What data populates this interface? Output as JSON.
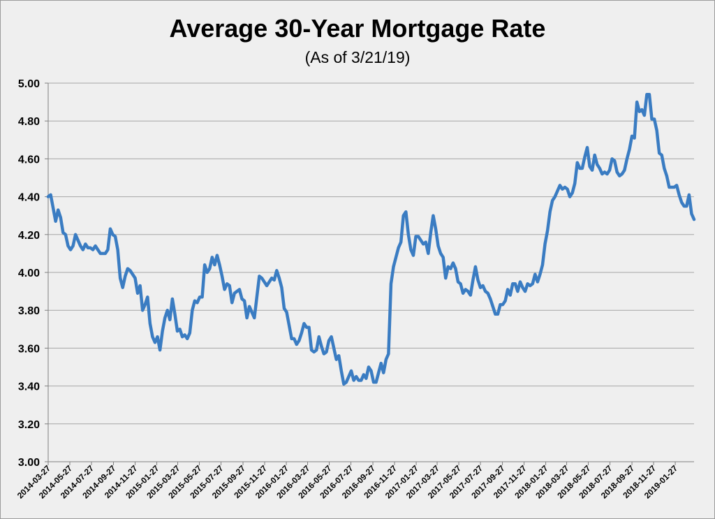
{
  "chart_data": {
    "type": "line",
    "title": "Average 30-Year Mortgage Rate",
    "subtitle": "(As of 3/21/19)",
    "xlabel": "",
    "ylabel": "",
    "ylim": [
      3.0,
      5.0
    ],
    "yticks": [
      "3.00",
      "3.20",
      "3.40",
      "3.60",
      "3.80",
      "4.00",
      "4.20",
      "4.40",
      "4.60",
      "4.80",
      "5.00"
    ],
    "xticks": [
      "2014-03-27",
      "2014-05-27",
      "2014-07-27",
      "2014-09-27",
      "2014-11-27",
      "2015-01-27",
      "2015-03-27",
      "2015-05-27",
      "2015-07-27",
      "2015-09-27",
      "2015-11-27",
      "2016-01-27",
      "2016-03-27",
      "2016-05-27",
      "2016-07-27",
      "2016-09-27",
      "2016-11-27",
      "2017-01-27",
      "2017-03-27",
      "2017-05-27",
      "2017-07-27",
      "2017-09-27",
      "2017-11-27",
      "2018-01-27",
      "2018-03-27",
      "2018-05-27",
      "2018-07-27",
      "2018-09-27",
      "2018-11-27",
      "2019-01-27"
    ],
    "xlim": [
      "2014-03-27",
      "2019-03-21"
    ],
    "grid": "horizontal",
    "legend": "none",
    "line_color": "#3a7cc2",
    "series": [
      {
        "points": [
          [
            "2014-03-27",
            4.4
          ],
          [
            "2014-04-03",
            4.41
          ],
          [
            "2014-04-10",
            4.34
          ],
          [
            "2014-04-17",
            4.27
          ],
          [
            "2014-04-24",
            4.33
          ],
          [
            "2014-05-01",
            4.29
          ],
          [
            "2014-05-08",
            4.21
          ],
          [
            "2014-05-15",
            4.2
          ],
          [
            "2014-05-22",
            4.14
          ],
          [
            "2014-05-29",
            4.12
          ],
          [
            "2014-06-05",
            4.14
          ],
          [
            "2014-06-12",
            4.2
          ],
          [
            "2014-06-19",
            4.17
          ],
          [
            "2014-06-26",
            4.14
          ],
          [
            "2014-07-03",
            4.12
          ],
          [
            "2014-07-10",
            4.15
          ],
          [
            "2014-07-17",
            4.13
          ],
          [
            "2014-07-24",
            4.13
          ],
          [
            "2014-07-31",
            4.12
          ],
          [
            "2014-08-07",
            4.14
          ],
          [
            "2014-08-14",
            4.12
          ],
          [
            "2014-08-21",
            4.1
          ],
          [
            "2014-08-28",
            4.1
          ],
          [
            "2014-09-04",
            4.1
          ],
          [
            "2014-09-11",
            4.12
          ],
          [
            "2014-09-18",
            4.23
          ],
          [
            "2014-09-25",
            4.2
          ],
          [
            "2014-10-02",
            4.19
          ],
          [
            "2014-10-09",
            4.12
          ],
          [
            "2014-10-16",
            3.97
          ],
          [
            "2014-10-23",
            3.92
          ],
          [
            "2014-10-30",
            3.98
          ],
          [
            "2014-11-06",
            4.02
          ],
          [
            "2014-11-13",
            4.01
          ],
          [
            "2014-11-20",
            3.99
          ],
          [
            "2014-11-27",
            3.97
          ],
          [
            "2014-12-04",
            3.89
          ],
          [
            "2014-12-11",
            3.93
          ],
          [
            "2014-12-18",
            3.8
          ],
          [
            "2014-12-25",
            3.83
          ],
          [
            "2015-01-01",
            3.87
          ],
          [
            "2015-01-08",
            3.73
          ],
          [
            "2015-01-15",
            3.66
          ],
          [
            "2015-01-22",
            3.63
          ],
          [
            "2015-01-29",
            3.66
          ],
          [
            "2015-02-05",
            3.59
          ],
          [
            "2015-02-12",
            3.69
          ],
          [
            "2015-02-19",
            3.76
          ],
          [
            "2015-02-26",
            3.8
          ],
          [
            "2015-03-05",
            3.75
          ],
          [
            "2015-03-12",
            3.86
          ],
          [
            "2015-03-19",
            3.78
          ],
          [
            "2015-03-26",
            3.69
          ],
          [
            "2015-04-02",
            3.7
          ],
          [
            "2015-04-09",
            3.66
          ],
          [
            "2015-04-16",
            3.67
          ],
          [
            "2015-04-23",
            3.65
          ],
          [
            "2015-04-30",
            3.68
          ],
          [
            "2015-05-07",
            3.8
          ],
          [
            "2015-05-14",
            3.85
          ],
          [
            "2015-05-21",
            3.84
          ],
          [
            "2015-05-28",
            3.87
          ],
          [
            "2015-06-04",
            3.87
          ],
          [
            "2015-06-11",
            4.04
          ],
          [
            "2015-06-18",
            4.0
          ],
          [
            "2015-06-25",
            4.02
          ],
          [
            "2015-07-02",
            4.08
          ],
          [
            "2015-07-09",
            4.04
          ],
          [
            "2015-07-16",
            4.09
          ],
          [
            "2015-07-23",
            4.04
          ],
          [
            "2015-07-30",
            3.98
          ],
          [
            "2015-08-06",
            3.91
          ],
          [
            "2015-08-13",
            3.94
          ],
          [
            "2015-08-20",
            3.93
          ],
          [
            "2015-08-27",
            3.84
          ],
          [
            "2015-09-03",
            3.89
          ],
          [
            "2015-09-10",
            3.9
          ],
          [
            "2015-09-17",
            3.91
          ],
          [
            "2015-09-24",
            3.86
          ],
          [
            "2015-10-01",
            3.85
          ],
          [
            "2015-10-08",
            3.76
          ],
          [
            "2015-10-15",
            3.82
          ],
          [
            "2015-10-22",
            3.79
          ],
          [
            "2015-10-29",
            3.76
          ],
          [
            "2015-11-05",
            3.87
          ],
          [
            "2015-11-12",
            3.98
          ],
          [
            "2015-11-19",
            3.97
          ],
          [
            "2015-11-26",
            3.95
          ],
          [
            "2015-12-03",
            3.93
          ],
          [
            "2015-12-10",
            3.95
          ],
          [
            "2015-12-17",
            3.97
          ],
          [
            "2015-12-24",
            3.96
          ],
          [
            "2015-12-31",
            4.01
          ],
          [
            "2016-01-07",
            3.97
          ],
          [
            "2016-01-14",
            3.92
          ],
          [
            "2016-01-21",
            3.81
          ],
          [
            "2016-01-28",
            3.79
          ],
          [
            "2016-02-04",
            3.72
          ],
          [
            "2016-02-11",
            3.65
          ],
          [
            "2016-02-18",
            3.65
          ],
          [
            "2016-02-25",
            3.62
          ],
          [
            "2016-03-03",
            3.64
          ],
          [
            "2016-03-10",
            3.68
          ],
          [
            "2016-03-17",
            3.73
          ],
          [
            "2016-03-24",
            3.71
          ],
          [
            "2016-03-31",
            3.71
          ],
          [
            "2016-04-07",
            3.59
          ],
          [
            "2016-04-14",
            3.58
          ],
          [
            "2016-04-21",
            3.59
          ],
          [
            "2016-04-28",
            3.66
          ],
          [
            "2016-05-05",
            3.61
          ],
          [
            "2016-05-12",
            3.57
          ],
          [
            "2016-05-19",
            3.58
          ],
          [
            "2016-05-26",
            3.64
          ],
          [
            "2016-06-02",
            3.66
          ],
          [
            "2016-06-09",
            3.6
          ],
          [
            "2016-06-16",
            3.54
          ],
          [
            "2016-06-23",
            3.56
          ],
          [
            "2016-06-30",
            3.48
          ],
          [
            "2016-07-07",
            3.41
          ],
          [
            "2016-07-14",
            3.42
          ],
          [
            "2016-07-21",
            3.45
          ],
          [
            "2016-07-28",
            3.48
          ],
          [
            "2016-08-04",
            3.43
          ],
          [
            "2016-08-11",
            3.45
          ],
          [
            "2016-08-18",
            3.43
          ],
          [
            "2016-08-25",
            3.43
          ],
          [
            "2016-09-01",
            3.46
          ],
          [
            "2016-09-08",
            3.44
          ],
          [
            "2016-09-15",
            3.5
          ],
          [
            "2016-09-22",
            3.48
          ],
          [
            "2016-09-29",
            3.42
          ],
          [
            "2016-10-06",
            3.42
          ],
          [
            "2016-10-13",
            3.47
          ],
          [
            "2016-10-20",
            3.52
          ],
          [
            "2016-10-27",
            3.47
          ],
          [
            "2016-11-03",
            3.54
          ],
          [
            "2016-11-10",
            3.57
          ],
          [
            "2016-11-17",
            3.94
          ],
          [
            "2016-11-24",
            4.03
          ],
          [
            "2016-12-01",
            4.08
          ],
          [
            "2016-12-08",
            4.13
          ],
          [
            "2016-12-15",
            4.16
          ],
          [
            "2016-12-22",
            4.3
          ],
          [
            "2016-12-29",
            4.32
          ],
          [
            "2017-01-05",
            4.2
          ],
          [
            "2017-01-12",
            4.12
          ],
          [
            "2017-01-19",
            4.09
          ],
          [
            "2017-01-26",
            4.19
          ],
          [
            "2017-02-02",
            4.19
          ],
          [
            "2017-02-09",
            4.17
          ],
          [
            "2017-02-16",
            4.15
          ],
          [
            "2017-02-23",
            4.16
          ],
          [
            "2017-03-02",
            4.1
          ],
          [
            "2017-03-09",
            4.21
          ],
          [
            "2017-03-16",
            4.3
          ],
          [
            "2017-03-23",
            4.23
          ],
          [
            "2017-03-30",
            4.14
          ],
          [
            "2017-04-06",
            4.1
          ],
          [
            "2017-04-13",
            4.08
          ],
          [
            "2017-04-20",
            3.97
          ],
          [
            "2017-04-27",
            4.03
          ],
          [
            "2017-05-04",
            4.02
          ],
          [
            "2017-05-11",
            4.05
          ],
          [
            "2017-05-18",
            4.02
          ],
          [
            "2017-05-25",
            3.95
          ],
          [
            "2017-06-01",
            3.94
          ],
          [
            "2017-06-08",
            3.89
          ],
          [
            "2017-06-15",
            3.91
          ],
          [
            "2017-06-22",
            3.9
          ],
          [
            "2017-06-29",
            3.88
          ],
          [
            "2017-07-06",
            3.96
          ],
          [
            "2017-07-13",
            4.03
          ],
          [
            "2017-07-20",
            3.96
          ],
          [
            "2017-07-27",
            3.92
          ],
          [
            "2017-08-03",
            3.93
          ],
          [
            "2017-08-10",
            3.9
          ],
          [
            "2017-08-17",
            3.89
          ],
          [
            "2017-08-24",
            3.86
          ],
          [
            "2017-08-31",
            3.82
          ],
          [
            "2017-09-07",
            3.78
          ],
          [
            "2017-09-14",
            3.78
          ],
          [
            "2017-09-21",
            3.83
          ],
          [
            "2017-09-28",
            3.83
          ],
          [
            "2017-10-05",
            3.85
          ],
          [
            "2017-10-12",
            3.91
          ],
          [
            "2017-10-19",
            3.88
          ],
          [
            "2017-10-26",
            3.94
          ],
          [
            "2017-11-02",
            3.94
          ],
          [
            "2017-11-09",
            3.9
          ],
          [
            "2017-11-16",
            3.95
          ],
          [
            "2017-11-23",
            3.92
          ],
          [
            "2017-11-30",
            3.9
          ],
          [
            "2017-12-07",
            3.94
          ],
          [
            "2017-12-14",
            3.93
          ],
          [
            "2017-12-21",
            3.94
          ],
          [
            "2017-12-28",
            3.99
          ],
          [
            "2018-01-04",
            3.95
          ],
          [
            "2018-01-11",
            3.99
          ],
          [
            "2018-01-18",
            4.04
          ],
          [
            "2018-01-25",
            4.15
          ],
          [
            "2018-02-01",
            4.22
          ],
          [
            "2018-02-08",
            4.32
          ],
          [
            "2018-02-15",
            4.38
          ],
          [
            "2018-02-22",
            4.4
          ],
          [
            "2018-03-01",
            4.43
          ],
          [
            "2018-03-08",
            4.46
          ],
          [
            "2018-03-15",
            4.44
          ],
          [
            "2018-03-22",
            4.45
          ],
          [
            "2018-03-29",
            4.44
          ],
          [
            "2018-04-05",
            4.4
          ],
          [
            "2018-04-12",
            4.42
          ],
          [
            "2018-04-19",
            4.47
          ],
          [
            "2018-04-26",
            4.58
          ],
          [
            "2018-05-03",
            4.55
          ],
          [
            "2018-05-10",
            4.55
          ],
          [
            "2018-05-17",
            4.61
          ],
          [
            "2018-05-24",
            4.66
          ],
          [
            "2018-05-31",
            4.56
          ],
          [
            "2018-06-07",
            4.54
          ],
          [
            "2018-06-14",
            4.62
          ],
          [
            "2018-06-21",
            4.57
          ],
          [
            "2018-06-28",
            4.55
          ],
          [
            "2018-07-05",
            4.52
          ],
          [
            "2018-07-12",
            4.53
          ],
          [
            "2018-07-19",
            4.52
          ],
          [
            "2018-07-26",
            4.54
          ],
          [
            "2018-08-02",
            4.6
          ],
          [
            "2018-08-09",
            4.59
          ],
          [
            "2018-08-16",
            4.53
          ],
          [
            "2018-08-23",
            4.51
          ],
          [
            "2018-08-30",
            4.52
          ],
          [
            "2018-09-06",
            4.54
          ],
          [
            "2018-09-13",
            4.6
          ],
          [
            "2018-09-20",
            4.65
          ],
          [
            "2018-09-27",
            4.72
          ],
          [
            "2018-10-04",
            4.71
          ],
          [
            "2018-10-11",
            4.9
          ],
          [
            "2018-10-18",
            4.85
          ],
          [
            "2018-10-25",
            4.86
          ],
          [
            "2018-11-01",
            4.83
          ],
          [
            "2018-11-08",
            4.94
          ],
          [
            "2018-11-15",
            4.94
          ],
          [
            "2018-11-22",
            4.81
          ],
          [
            "2018-11-29",
            4.81
          ],
          [
            "2018-12-06",
            4.75
          ],
          [
            "2018-12-13",
            4.63
          ],
          [
            "2018-12-20",
            4.62
          ],
          [
            "2018-12-27",
            4.55
          ],
          [
            "2019-01-03",
            4.51
          ],
          [
            "2019-01-10",
            4.45
          ],
          [
            "2019-01-17",
            4.45
          ],
          [
            "2019-01-24",
            4.45
          ],
          [
            "2019-01-31",
            4.46
          ],
          [
            "2019-02-07",
            4.41
          ],
          [
            "2019-02-14",
            4.37
          ],
          [
            "2019-02-21",
            4.35
          ],
          [
            "2019-02-28",
            4.35
          ],
          [
            "2019-03-07",
            4.41
          ],
          [
            "2019-03-14",
            4.31
          ],
          [
            "2019-03-21",
            4.28
          ]
        ]
      }
    ]
  }
}
